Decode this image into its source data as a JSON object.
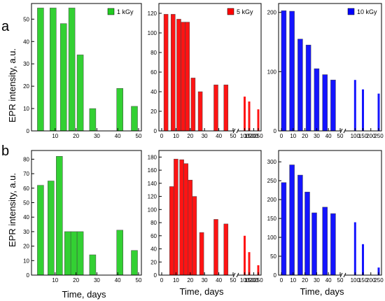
{
  "figure": {
    "row_labels": [
      "a",
      "b"
    ],
    "ylabel": "EPR intensity, a.u.",
    "xlabel": "Time, days"
  },
  "chart_data": [
    {
      "id": "a1",
      "type": "bar",
      "legend": "1 kGy",
      "color": "#22cc22",
      "ylim": [
        0,
        57
      ],
      "yticks": [
        0,
        10,
        20,
        30,
        40,
        50
      ],
      "x_segments": [
        {
          "min": 0,
          "max": 50,
          "ticks": [
            10,
            20,
            30,
            40,
            50
          ]
        }
      ],
      "bars": [
        {
          "x": 3,
          "y": 55
        },
        {
          "x": 9,
          "y": 55
        },
        {
          "x": 14,
          "y": 48
        },
        {
          "x": 18,
          "y": 55
        },
        {
          "x": 22,
          "y": 34
        },
        {
          "x": 28,
          "y": 10
        },
        {
          "x": 41,
          "y": 19
        },
        {
          "x": 48,
          "y": 11
        }
      ]
    },
    {
      "id": "a2",
      "type": "bar",
      "legend": "5 kGy",
      "color": "#ff0000",
      "ylim": [
        0,
        130
      ],
      "yticks": [
        0,
        20,
        40,
        60,
        80,
        100,
        120
      ],
      "x_segments": [
        {
          "min": 0,
          "max": 50,
          "ticks": [
            0,
            10,
            20,
            30,
            40,
            50
          ]
        },
        {
          "min": 50,
          "max": 250,
          "ticks": [
            100,
            150,
            200,
            250
          ]
        }
      ],
      "bars": [
        {
          "x": 3,
          "y": 119
        },
        {
          "x": 8,
          "y": 119
        },
        {
          "x": 12,
          "y": 114
        },
        {
          "x": 15,
          "y": 111
        },
        {
          "x": 18,
          "y": 111
        },
        {
          "x": 22,
          "y": 54
        },
        {
          "x": 27,
          "y": 40
        },
        {
          "x": 38,
          "y": 47
        },
        {
          "x": 45,
          "y": 47
        },
        {
          "x": 100,
          "y": 35
        },
        {
          "x": 150,
          "y": 30
        },
        {
          "x": 250,
          "y": 22
        }
      ]
    },
    {
      "id": "a3",
      "type": "bar",
      "legend": "10 kGy",
      "color": "#0000ff",
      "ylim": [
        0,
        215
      ],
      "yticks": [
        0,
        100,
        200
      ],
      "x_segments": [
        {
          "min": 0,
          "max": 50,
          "ticks": [
            0,
            10,
            20,
            30,
            40,
            50
          ]
        },
        {
          "min": 50,
          "max": 250,
          "ticks": [
            100,
            150,
            200,
            250
          ]
        }
      ],
      "bars": [
        {
          "x": 2,
          "y": 203
        },
        {
          "x": 9,
          "y": 202
        },
        {
          "x": 16,
          "y": 155
        },
        {
          "x": 23,
          "y": 145
        },
        {
          "x": 30,
          "y": 105
        },
        {
          "x": 37,
          "y": 95
        },
        {
          "x": 44,
          "y": 86
        },
        {
          "x": 100,
          "y": 86
        },
        {
          "x": 150,
          "y": 70
        },
        {
          "x": 250,
          "y": 63
        }
      ]
    },
    {
      "id": "b1",
      "type": "bar",
      "color": "#22cc22",
      "ylim": [
        0,
        86
      ],
      "yticks": [
        0,
        10,
        20,
        30,
        40,
        50,
        60,
        70,
        80
      ],
      "x_segments": [
        {
          "min": 0,
          "max": 50,
          "ticks": [
            10,
            20,
            30,
            40,
            50
          ]
        }
      ],
      "bars": [
        {
          "x": 3,
          "y": 62
        },
        {
          "x": 8,
          "y": 65
        },
        {
          "x": 12,
          "y": 82
        },
        {
          "x": 16,
          "y": 30
        },
        {
          "x": 19,
          "y": 30
        },
        {
          "x": 22,
          "y": 30
        },
        {
          "x": 28,
          "y": 14
        },
        {
          "x": 41,
          "y": 31
        },
        {
          "x": 48,
          "y": 17
        }
      ]
    },
    {
      "id": "b2",
      "type": "bar",
      "color": "#ff0000",
      "ylim": [
        0,
        190
      ],
      "yticks": [
        0,
        20,
        40,
        60,
        80,
        100,
        120,
        140,
        160,
        180
      ],
      "x_segments": [
        {
          "min": 0,
          "max": 50,
          "ticks": [
            0,
            10,
            20,
            30,
            40,
            50
          ]
        },
        {
          "min": 50,
          "max": 250,
          "ticks": [
            100,
            150,
            200,
            250
          ]
        }
      ],
      "bars": [
        {
          "x": 7,
          "y": 135
        },
        {
          "x": 10,
          "y": 177
        },
        {
          "x": 14,
          "y": 176
        },
        {
          "x": 17,
          "y": 170
        },
        {
          "x": 20,
          "y": 145
        },
        {
          "x": 23,
          "y": 120
        },
        {
          "x": 28,
          "y": 65
        },
        {
          "x": 38,
          "y": 85
        },
        {
          "x": 45,
          "y": 78
        },
        {
          "x": 100,
          "y": 60
        },
        {
          "x": 150,
          "y": 35
        },
        {
          "x": 250,
          "y": 15
        }
      ]
    },
    {
      "id": "b3",
      "type": "bar",
      "color": "#0000ff",
      "ylim": [
        0,
        330
      ],
      "yticks": [
        0,
        50,
        100,
        150,
        200,
        250,
        300
      ],
      "x_segments": [
        {
          "min": 0,
          "max": 50,
          "ticks": [
            0,
            10,
            20,
            30,
            40,
            50
          ]
        },
        {
          "min": 50,
          "max": 250,
          "ticks": [
            100,
            150,
            200,
            250
          ]
        }
      ],
      "bars": [
        {
          "x": 2,
          "y": 245
        },
        {
          "x": 9,
          "y": 292
        },
        {
          "x": 16,
          "y": 265
        },
        {
          "x": 22,
          "y": 220
        },
        {
          "x": 28,
          "y": 165
        },
        {
          "x": 37,
          "y": 180
        },
        {
          "x": 44,
          "y": 163
        },
        {
          "x": 100,
          "y": 140
        },
        {
          "x": 150,
          "y": 82
        },
        {
          "x": 250,
          "y": 20
        }
      ]
    }
  ]
}
